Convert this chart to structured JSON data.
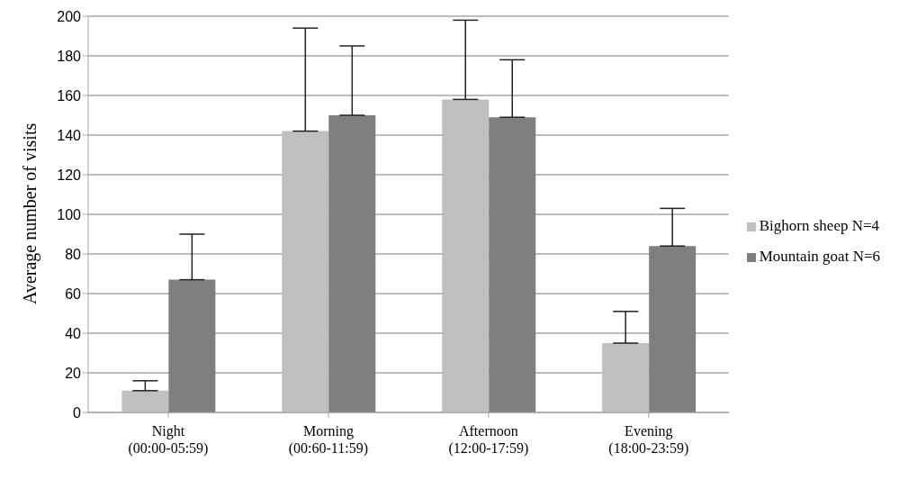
{
  "chart_data": {
    "type": "bar",
    "ylabel": "Average number of visits",
    "categories": [
      "Night\n(00:00-05:59)",
      "Morning\n(00:60-11:59)",
      "Afternoon\n(12:00-17:59)",
      "Evening\n(18:00-23:59)"
    ],
    "series": [
      {
        "name": "Bighorn sheep N=4",
        "color": "#bfbfbf",
        "values": [
          11,
          142,
          158,
          35
        ],
        "errors": [
          [
            11,
            16
          ],
          [
            142,
            194
          ],
          [
            158,
            198
          ],
          [
            35,
            51
          ]
        ]
      },
      {
        "name": "Mountain goat N=6",
        "color": "#7f7f7f",
        "values": [
          67,
          150,
          149,
          84
        ],
        "errors": [
          [
            67,
            90
          ],
          [
            150,
            185
          ],
          [
            149,
            178
          ],
          [
            84,
            103
          ]
        ]
      }
    ],
    "ylim": [
      0,
      200
    ],
    "yticks": [
      0,
      20,
      40,
      60,
      80,
      100,
      120,
      140,
      160,
      180,
      200
    ],
    "grid": "y",
    "legend": "right"
  }
}
